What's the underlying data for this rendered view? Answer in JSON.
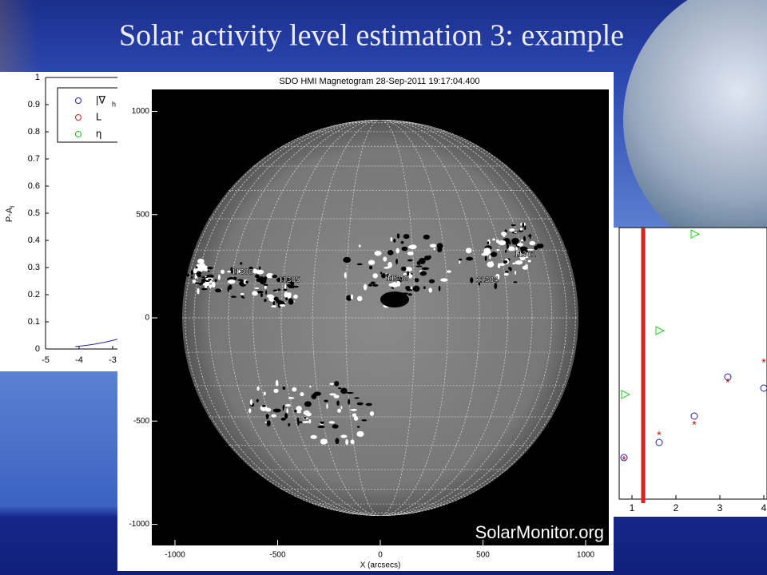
{
  "title": "Solar activity level estimation 3: example",
  "left_plot": {
    "ylabel": "P-A",
    "ylabel_sub": "i",
    "yticks": [
      0,
      0.1,
      0.2,
      0.3,
      0.4,
      0.5,
      0.6,
      0.7,
      0.8,
      0.9,
      1
    ],
    "xticks": [
      -5,
      -4,
      -3
    ],
    "legend": [
      "|∇",
      "L",
      "η"
    ],
    "legend_sub": "h"
  },
  "magnetogram": {
    "title": "SDO HMI Magnetogram 28-Sep-2011 19:17:04.400",
    "yticks": [
      1000,
      500,
      0,
      -500,
      -1000
    ],
    "xticks": [
      -1000,
      -500,
      0,
      500,
      1000
    ],
    "xlabel": "X (arcsecs)",
    "regions": [
      "11306",
      "11305",
      "11302",
      "11304",
      "11301"
    ],
    "watermark": "SolarMonitor.org"
  },
  "right_plot": {
    "xticks": [
      1,
      2,
      3,
      4
    ]
  }
}
